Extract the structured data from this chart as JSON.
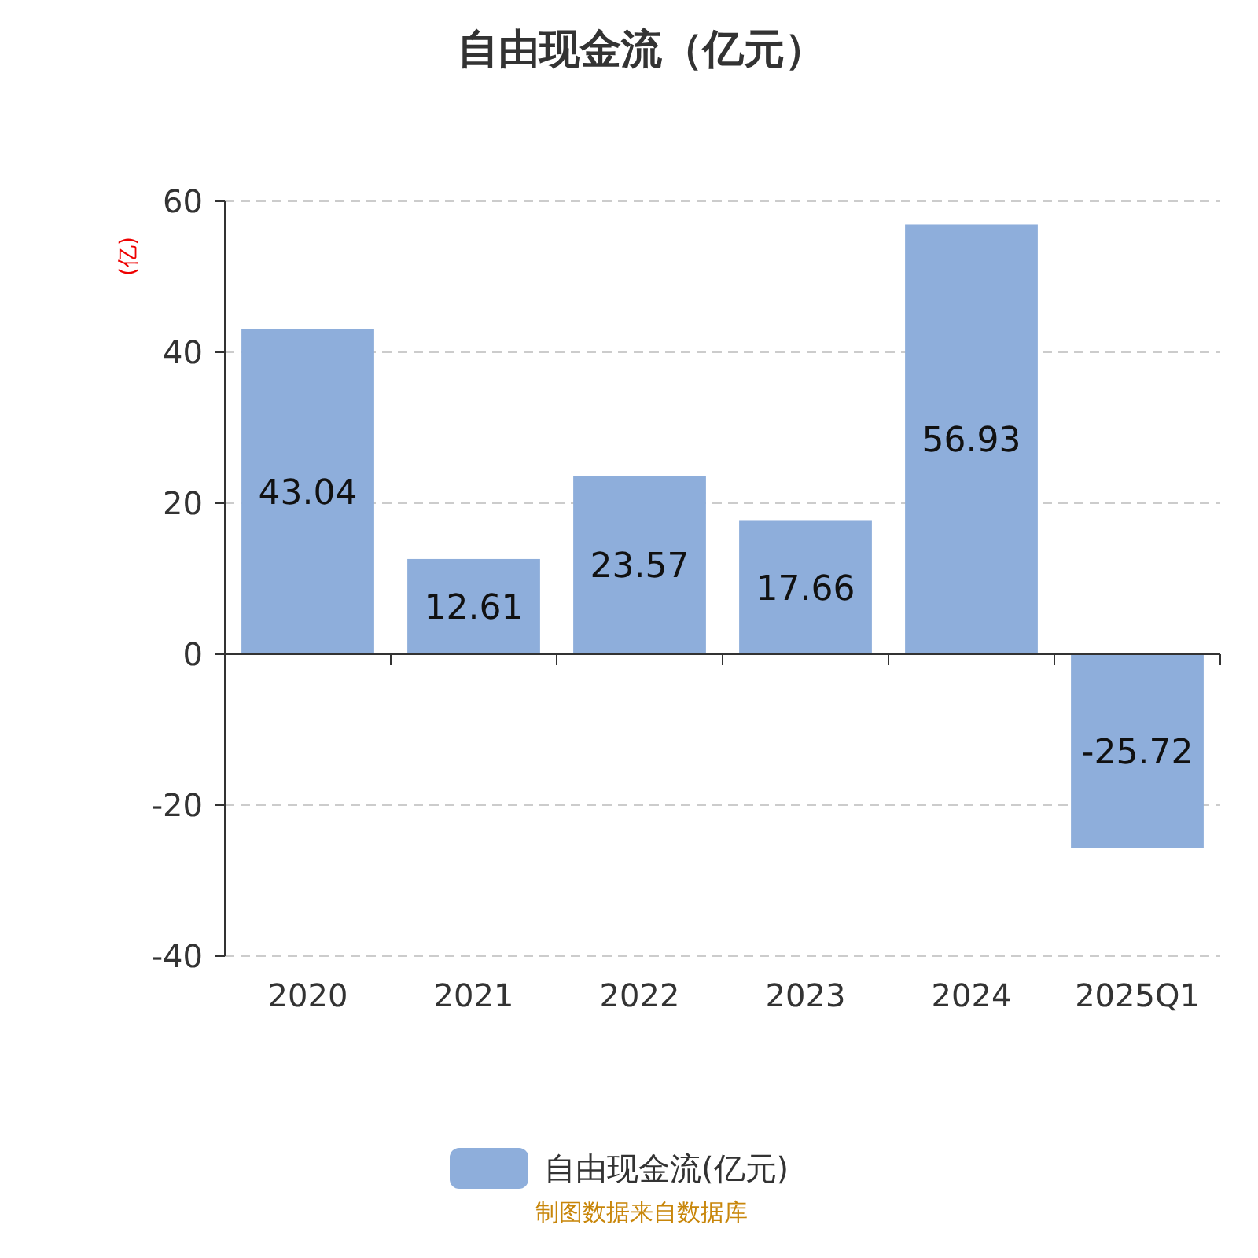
{
  "chart_data": {
    "type": "bar",
    "title": "自由现金流（亿元）",
    "ylabel": "(亿)",
    "categories": [
      "2020",
      "2021",
      "2022",
      "2023",
      "2024",
      "2025Q1"
    ],
    "series": [
      {
        "name": "自由现金流(亿元)",
        "color": "#8eaedb",
        "values": [
          43.04,
          12.61,
          23.57,
          17.66,
          56.93,
          -25.72
        ]
      }
    ],
    "ylim": [
      -40,
      60
    ],
    "yticks": [
      -40,
      -20,
      0,
      20,
      40,
      60
    ],
    "grid": "y",
    "legend": "bottom",
    "data_labels": true,
    "annotations": [
      "制图数据来自数据库"
    ]
  }
}
